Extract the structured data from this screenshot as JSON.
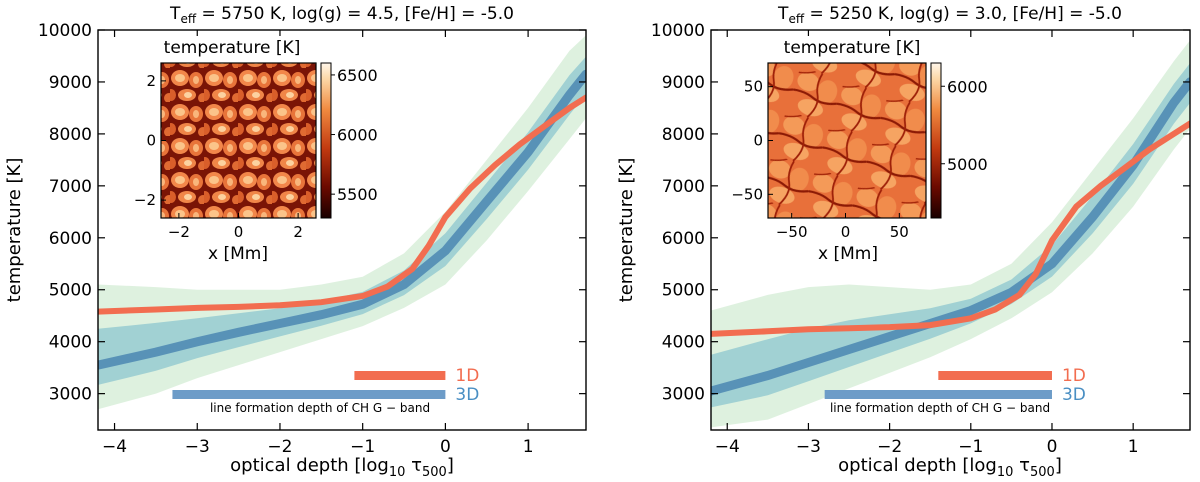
{
  "colors": {
    "model_1d": "#f26d50",
    "model_3d": "#6d9cc8",
    "label_3d": "#4a8fc3",
    "density_low": "#eef7e6",
    "density_mid": "#8fcfbf",
    "density_high": "#1d5fa0"
  },
  "chart_data": [
    {
      "type": "line",
      "panel": "left",
      "title_parts": {
        "teff": "T",
        "teff_sub": "eff",
        "rest": " = 5750 K,  log(g) = 4.5,  [Fe/H] = -5.0"
      },
      "xlabel_main": "optical depth [log",
      "xlabel_sub": "10",
      "xlabel_tau": " τ",
      "xlabel_tau_sub": "500",
      "xlabel_end": "]",
      "ylabel": "temperature [K]",
      "xlim": [
        -4.2,
        1.7
      ],
      "ylim": [
        2300,
        10000
      ],
      "xticks": [
        -4,
        -3,
        -2,
        -1,
        0,
        1
      ],
      "xtick_labels": [
        "−4",
        "−3",
        "−2",
        "−1",
        "0",
        "1"
      ],
      "yticks": [
        3000,
        4000,
        5000,
        6000,
        7000,
        8000,
        9000,
        10000
      ],
      "ytick_labels": [
        "3000",
        "4000",
        "5000",
        "6000",
        "7000",
        "8000",
        "9000",
        "10000"
      ],
      "series_1d": {
        "name": "1D",
        "x": [
          -4.2,
          -3.5,
          -3.0,
          -2.5,
          -2.0,
          -1.5,
          -1.0,
          -0.7,
          -0.4,
          -0.2,
          0.0,
          0.3,
          0.6,
          0.9,
          1.2,
          1.5,
          1.7
        ],
        "y": [
          4580,
          4620,
          4650,
          4670,
          4700,
          4760,
          4880,
          5060,
          5400,
          5850,
          6400,
          6950,
          7400,
          7800,
          8150,
          8500,
          8700
        ]
      },
      "series_3d_mean": {
        "x": [
          -4.2,
          -3.5,
          -3.0,
          -2.5,
          -2.0,
          -1.5,
          -1.0,
          -0.5,
          0.0,
          0.5,
          1.0,
          1.5,
          1.7
        ],
        "y": [
          3550,
          3800,
          4000,
          4180,
          4350,
          4520,
          4720,
          5100,
          5750,
          6700,
          7650,
          8750,
          9150
        ],
        "low": [
          2700,
          3000,
          3300,
          3550,
          3800,
          4050,
          4300,
          4650,
          5100,
          5950,
          6900,
          7900,
          8300
        ],
        "high": [
          5100,
          5050,
          5000,
          5000,
          5000,
          5100,
          5250,
          5700,
          6500,
          7500,
          8500,
          9600,
          9900
        ]
      },
      "formation_1d": {
        "label": "1D",
        "x_start": -1.1,
        "x_end": 0.0
      },
      "formation_3d": {
        "label": "3D",
        "x_start": -3.3,
        "x_end": 0.0
      },
      "formation_caption": "line formation depth of CH G − band",
      "inset": {
        "title": "temperature [K]",
        "xlabel": "x [Mm]",
        "axis_range": [
          -2.6,
          2.6
        ],
        "xticks": [
          -2,
          0,
          2
        ],
        "xtick_labels": [
          "−2",
          "0",
          "2"
        ],
        "yticks": [
          -2,
          0,
          2
        ],
        "ytick_labels": [
          "−2",
          "0",
          "2"
        ],
        "colorbar_range": [
          5300,
          6600
        ],
        "colorbar_ticks": [
          5500,
          6000,
          6500
        ],
        "colorbar_tick_labels": [
          "5500",
          "6000",
          "6500"
        ]
      }
    },
    {
      "type": "line",
      "panel": "right",
      "title_parts": {
        "teff": "T",
        "teff_sub": "eff",
        "rest": " = 5250 K,  log(g) = 3.0,  [Fe/H] = -5.0"
      },
      "xlabel_main": "optical depth [log",
      "xlabel_sub": "10",
      "xlabel_tau": " τ",
      "xlabel_tau_sub": "500",
      "xlabel_end": "]",
      "ylabel": "temperature [K]",
      "xlim": [
        -4.2,
        1.7
      ],
      "ylim": [
        2300,
        10000
      ],
      "xticks": [
        -4,
        -3,
        -2,
        -1,
        0,
        1
      ],
      "xtick_labels": [
        "−4",
        "−3",
        "−2",
        "−1",
        "0",
        "1"
      ],
      "yticks": [
        3000,
        4000,
        5000,
        6000,
        7000,
        8000,
        9000,
        10000
      ],
      "ytick_labels": [
        "3000",
        "4000",
        "5000",
        "6000",
        "7000",
        "8000",
        "9000",
        "10000"
      ],
      "series_1d": {
        "name": "1D",
        "x": [
          -4.2,
          -3.5,
          -3.0,
          -2.5,
          -2.0,
          -1.5,
          -1.0,
          -0.7,
          -0.4,
          -0.2,
          0.0,
          0.3,
          0.6,
          0.9,
          1.2,
          1.5,
          1.7
        ],
        "y": [
          4150,
          4200,
          4240,
          4260,
          4280,
          4320,
          4450,
          4620,
          4900,
          5300,
          5950,
          6600,
          7000,
          7350,
          7700,
          8000,
          8200
        ]
      },
      "series_3d_mean": {
        "x": [
          -4.2,
          -3.5,
          -3.0,
          -2.5,
          -2.0,
          -1.5,
          -1.0,
          -0.5,
          0.0,
          0.5,
          1.0,
          1.5,
          1.7
        ],
        "y": [
          3050,
          3350,
          3600,
          3850,
          4100,
          4350,
          4600,
          4950,
          5500,
          6400,
          7400,
          8600,
          9000
        ],
        "low": [
          2350,
          2500,
          2800,
          3100,
          3400,
          3700,
          4050,
          4450,
          4950,
          5700,
          6600,
          7700,
          8100
        ],
        "high": [
          4600,
          4900,
          5050,
          5100,
          5050,
          5000,
          5100,
          5500,
          6300,
          7300,
          8300,
          9400,
          9800
        ]
      },
      "formation_1d": {
        "label": "1D",
        "x_start": -1.4,
        "x_end": 0.0
      },
      "formation_3d": {
        "label": "3D",
        "x_start": -2.8,
        "x_end": 0.0
      },
      "formation_caption": "line formation depth of CH G − band",
      "inset": {
        "title": "temperature [K]",
        "xlabel": "x [Mm]",
        "axis_range": [
          -72,
          72
        ],
        "xticks": [
          -50,
          0,
          50
        ],
        "xtick_labels": [
          "−50",
          "0",
          "50"
        ],
        "yticks": [
          -50,
          0,
          50
        ],
        "ytick_labels": [
          "−50",
          "0",
          "50"
        ],
        "colorbar_range": [
          4300,
          6300
        ],
        "colorbar_ticks": [
          5000,
          6000
        ],
        "colorbar_tick_labels": [
          "5000",
          "6000"
        ]
      }
    }
  ]
}
